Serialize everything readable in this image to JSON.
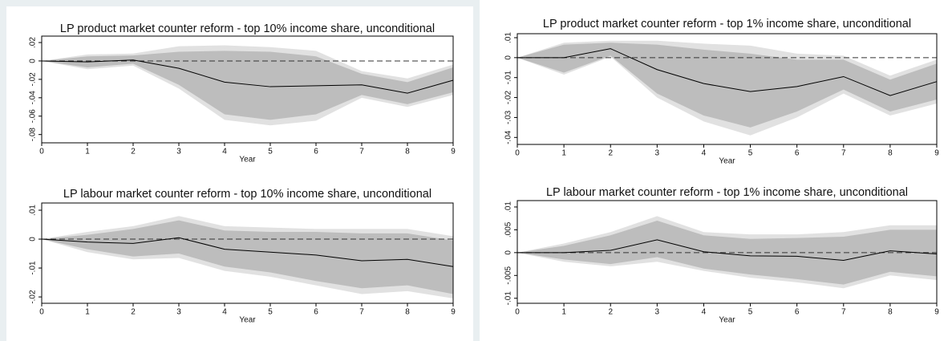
{
  "chart_data": [
    {
      "type": "line",
      "title": "LP product market counter reform - top 10% income share, unconditional",
      "x_label": "Year",
      "x": [
        0,
        1,
        2,
        3,
        4,
        5,
        6,
        7,
        8,
        9
      ],
      "xlim": [
        0,
        9
      ],
      "xticks": [
        0,
        1,
        2,
        3,
        4,
        5,
        6,
        7,
        8,
        9
      ],
      "ylim": [
        -0.089,
        0.027
      ],
      "yticks": [
        {
          "value": 0.02,
          "label": ".02"
        },
        0,
        {
          "value": -0.02,
          "label": "-.02"
        },
        {
          "value": -0.04,
          "label": "-.04"
        },
        {
          "value": -0.06,
          "label": "-.06"
        },
        {
          "value": -0.08,
          "label": "-.08"
        }
      ],
      "zero_line": true,
      "line_color": "#000000",
      "values": [
        0,
        -0.001,
        0.001,
        -0.008,
        -0.023,
        -0.028,
        -0.027,
        -0.026,
        -0.035,
        -0.021
      ],
      "bands": [
        {
          "color": "#e1e1e1",
          "upper": [
            0,
            0.007,
            0.008,
            0.016,
            0.017,
            0.015,
            0.011,
            -0.011,
            -0.019,
            -0.004
          ],
          "lower": [
            0,
            -0.009,
            -0.005,
            -0.03,
            -0.064,
            -0.07,
            -0.065,
            -0.04,
            -0.05,
            -0.037
          ]
        },
        {
          "color": "#bdbdbd",
          "upper": [
            0,
            0.005,
            0.006,
            0.01,
            0.011,
            0.01,
            0.005,
            -0.014,
            -0.023,
            -0.007
          ],
          "lower": [
            0,
            -0.007,
            -0.003,
            -0.026,
            -0.058,
            -0.064,
            -0.058,
            -0.037,
            -0.047,
            -0.034
          ]
        }
      ]
    },
    {
      "type": "line",
      "title": "LP product market counter reform - top 1% income share, unconditional",
      "x_label": "Year",
      "x": [
        0,
        1,
        2,
        3,
        4,
        5,
        6,
        7,
        8,
        9
      ],
      "xlim": [
        0,
        9
      ],
      "xticks": [
        0,
        1,
        2,
        3,
        4,
        5,
        6,
        7,
        8,
        9
      ],
      "ylim": [
        -0.0435,
        0.012
      ],
      "yticks": [
        {
          "value": 0.01,
          "label": ".01"
        },
        0,
        {
          "value": -0.01,
          "label": "-.01"
        },
        {
          "value": -0.02,
          "label": "-.02"
        },
        {
          "value": -0.03,
          "label": "-.03"
        },
        {
          "value": -0.04,
          "label": "-.04"
        }
      ],
      "zero_line": true,
      "line_color": "#000000",
      "values": [
        0,
        0,
        0.0045,
        -0.006,
        -0.013,
        -0.017,
        -0.0145,
        -0.0095,
        -0.019,
        -0.012
      ],
      "bands": [
        {
          "color": "#e1e1e1",
          "upper": [
            0,
            0.0075,
            0.0085,
            0.0085,
            0.007,
            0.006,
            0.002,
            0.001,
            -0.009,
            -0.001
          ],
          "lower": [
            0,
            -0.0085,
            0.0005,
            -0.02,
            -0.032,
            -0.039,
            -0.03,
            -0.018,
            -0.029,
            -0.023
          ]
        },
        {
          "color": "#bdbdbd",
          "upper": [
            0,
            0.0065,
            0.0075,
            0.0065,
            0.004,
            0.002,
            -0.001,
            -0.001,
            -0.011,
            -0.003
          ],
          "lower": [
            0,
            -0.0075,
            0.001,
            -0.018,
            -0.029,
            -0.035,
            -0.027,
            -0.016,
            -0.027,
            -0.021
          ]
        }
      ]
    },
    {
      "type": "line",
      "title": "LP labour market counter reform - top 10% income share, unconditional",
      "x_label": "Year",
      "x": [
        0,
        1,
        2,
        3,
        4,
        5,
        6,
        7,
        8,
        9
      ],
      "xlim": [
        0,
        9
      ],
      "xticks": [
        0,
        1,
        2,
        3,
        4,
        5,
        6,
        7,
        8,
        9
      ],
      "ylim": [
        -0.0222,
        0.0125
      ],
      "yticks": [
        {
          "value": 0.01,
          "label": ".01"
        },
        0,
        {
          "value": -0.01,
          "label": "-.01"
        },
        {
          "value": -0.02,
          "label": "-.02"
        }
      ],
      "zero_line": true,
      "line_color": "#000000",
      "values": [
        0,
        -0.001,
        -0.0015,
        0.0005,
        -0.0035,
        -0.0045,
        -0.0055,
        -0.0075,
        -0.007,
        -0.0095
      ],
      "bands": [
        {
          "color": "#e1e1e1",
          "upper": [
            0,
            0.0025,
            0.0045,
            0.008,
            0.0045,
            0.004,
            0.0035,
            0.0035,
            0.0035,
            0.001
          ],
          "lower": [
            0,
            -0.0045,
            -0.007,
            -0.0065,
            -0.011,
            -0.013,
            -0.016,
            -0.019,
            -0.018,
            -0.0205
          ]
        },
        {
          "color": "#bdbdbd",
          "upper": [
            0,
            0.0015,
            0.0035,
            0.0065,
            0.003,
            0.0025,
            0.0025,
            0.002,
            0.002,
            -0.0005
          ],
          "lower": [
            0,
            -0.0035,
            -0.006,
            -0.005,
            -0.0095,
            -0.0115,
            -0.0145,
            -0.017,
            -0.016,
            -0.019
          ]
        }
      ]
    },
    {
      "type": "line",
      "title": "LP labour market counter reform - top 1% income share, unconditional",
      "x_label": "Year",
      "x": [
        0,
        1,
        2,
        3,
        4,
        5,
        6,
        7,
        8,
        9
      ],
      "xlim": [
        0,
        9
      ],
      "xticks": [
        0,
        1,
        2,
        3,
        4,
        5,
        6,
        7,
        8,
        9
      ],
      "ylim": [
        -0.0111,
        0.0114
      ],
      "yticks": [
        {
          "value": 0.01,
          "label": ".01"
        },
        {
          "value": 0.005,
          "label": ".005"
        },
        0,
        {
          "value": -0.005,
          "label": "-.005"
        },
        {
          "value": -0.01,
          "label": "-.01"
        }
      ],
      "zero_line": true,
      "line_color": "#000000",
      "values": [
        0,
        0,
        0.0005,
        0.0028,
        0.0002,
        -0.0007,
        -0.0008,
        -0.0017,
        0.0004,
        -0.0003
      ],
      "bands": [
        {
          "color": "#e1e1e1",
          "upper": [
            0,
            0.002,
            0.0045,
            0.008,
            0.0045,
            0.004,
            0.004,
            0.0045,
            0.006,
            0.006
          ],
          "lower": [
            0,
            -0.002,
            -0.003,
            -0.002,
            -0.004,
            -0.0055,
            -0.0065,
            -0.0078,
            -0.005,
            -0.006
          ]
        },
        {
          "color": "#bdbdbd",
          "upper": [
            0,
            0.0015,
            0.0038,
            0.007,
            0.0038,
            0.003,
            0.0032,
            0.0035,
            0.005,
            0.005
          ],
          "lower": [
            0,
            -0.0015,
            -0.0025,
            -0.001,
            -0.0035,
            -0.0048,
            -0.0058,
            -0.007,
            -0.0042,
            -0.0052
          ]
        }
      ]
    }
  ]
}
